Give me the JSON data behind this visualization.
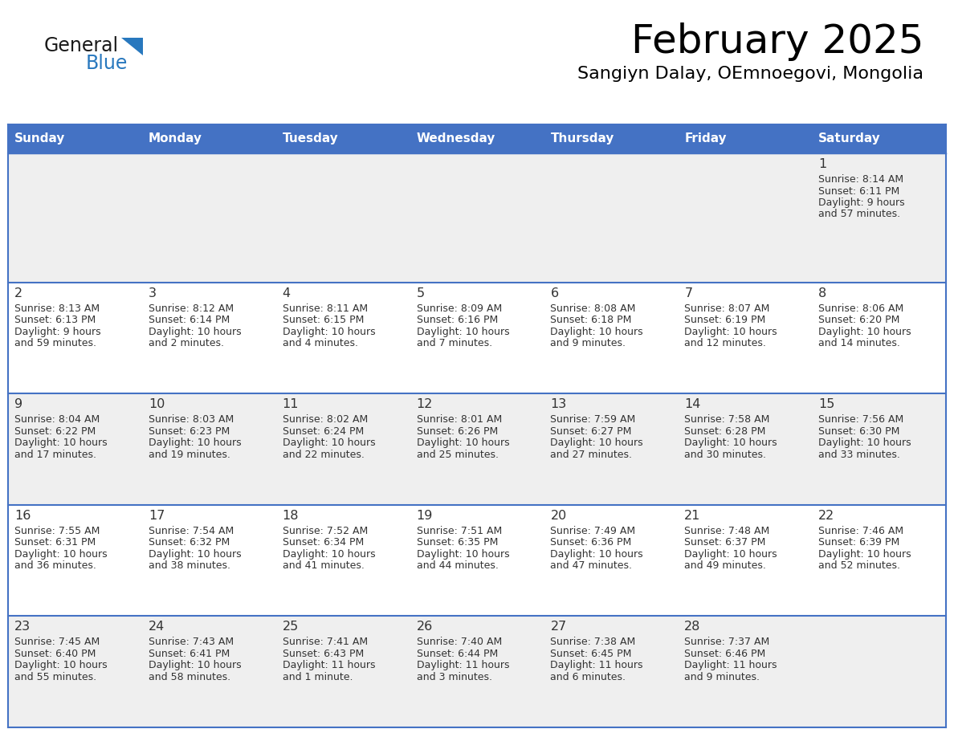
{
  "title": "February 2025",
  "subtitle": "Sangiyn Dalay, OEmnoegovi, Mongolia",
  "header_bg": "#4472C4",
  "header_text": "#FFFFFF",
  "row_bg_odd": "#EFEFEF",
  "row_bg_even": "#FFFFFF",
  "cell_border_color": "#4472C4",
  "day_number_color": "#333333",
  "info_text_color": "#333333",
  "logo_general_color": "#1a1a1a",
  "logo_blue_color": "#2878be",
  "logo_triangle_color": "#2878be",
  "day_headers": [
    "Sunday",
    "Monday",
    "Tuesday",
    "Wednesday",
    "Thursday",
    "Friday",
    "Saturday"
  ],
  "days": [
    {
      "day": 1,
      "col": 6,
      "row": 0,
      "sunrise": "8:14 AM",
      "sunset": "6:11 PM",
      "daylight_h": "9 hours",
      "daylight_m": "and 57 minutes."
    },
    {
      "day": 2,
      "col": 0,
      "row": 1,
      "sunrise": "8:13 AM",
      "sunset": "6:13 PM",
      "daylight_h": "9 hours",
      "daylight_m": "and 59 minutes."
    },
    {
      "day": 3,
      "col": 1,
      "row": 1,
      "sunrise": "8:12 AM",
      "sunset": "6:14 PM",
      "daylight_h": "10 hours",
      "daylight_m": "and 2 minutes."
    },
    {
      "day": 4,
      "col": 2,
      "row": 1,
      "sunrise": "8:11 AM",
      "sunset": "6:15 PM",
      "daylight_h": "10 hours",
      "daylight_m": "and 4 minutes."
    },
    {
      "day": 5,
      "col": 3,
      "row": 1,
      "sunrise": "8:09 AM",
      "sunset": "6:16 PM",
      "daylight_h": "10 hours",
      "daylight_m": "and 7 minutes."
    },
    {
      "day": 6,
      "col": 4,
      "row": 1,
      "sunrise": "8:08 AM",
      "sunset": "6:18 PM",
      "daylight_h": "10 hours",
      "daylight_m": "and 9 minutes."
    },
    {
      "day": 7,
      "col": 5,
      "row": 1,
      "sunrise": "8:07 AM",
      "sunset": "6:19 PM",
      "daylight_h": "10 hours",
      "daylight_m": "and 12 minutes."
    },
    {
      "day": 8,
      "col": 6,
      "row": 1,
      "sunrise": "8:06 AM",
      "sunset": "6:20 PM",
      "daylight_h": "10 hours",
      "daylight_m": "and 14 minutes."
    },
    {
      "day": 9,
      "col": 0,
      "row": 2,
      "sunrise": "8:04 AM",
      "sunset": "6:22 PM",
      "daylight_h": "10 hours",
      "daylight_m": "and 17 minutes."
    },
    {
      "day": 10,
      "col": 1,
      "row": 2,
      "sunrise": "8:03 AM",
      "sunset": "6:23 PM",
      "daylight_h": "10 hours",
      "daylight_m": "and 19 minutes."
    },
    {
      "day": 11,
      "col": 2,
      "row": 2,
      "sunrise": "8:02 AM",
      "sunset": "6:24 PM",
      "daylight_h": "10 hours",
      "daylight_m": "and 22 minutes."
    },
    {
      "day": 12,
      "col": 3,
      "row": 2,
      "sunrise": "8:01 AM",
      "sunset": "6:26 PM",
      "daylight_h": "10 hours",
      "daylight_m": "and 25 minutes."
    },
    {
      "day": 13,
      "col": 4,
      "row": 2,
      "sunrise": "7:59 AM",
      "sunset": "6:27 PM",
      "daylight_h": "10 hours",
      "daylight_m": "and 27 minutes."
    },
    {
      "day": 14,
      "col": 5,
      "row": 2,
      "sunrise": "7:58 AM",
      "sunset": "6:28 PM",
      "daylight_h": "10 hours",
      "daylight_m": "and 30 minutes."
    },
    {
      "day": 15,
      "col": 6,
      "row": 2,
      "sunrise": "7:56 AM",
      "sunset": "6:30 PM",
      "daylight_h": "10 hours",
      "daylight_m": "and 33 minutes."
    },
    {
      "day": 16,
      "col": 0,
      "row": 3,
      "sunrise": "7:55 AM",
      "sunset": "6:31 PM",
      "daylight_h": "10 hours",
      "daylight_m": "and 36 minutes."
    },
    {
      "day": 17,
      "col": 1,
      "row": 3,
      "sunrise": "7:54 AM",
      "sunset": "6:32 PM",
      "daylight_h": "10 hours",
      "daylight_m": "and 38 minutes."
    },
    {
      "day": 18,
      "col": 2,
      "row": 3,
      "sunrise": "7:52 AM",
      "sunset": "6:34 PM",
      "daylight_h": "10 hours",
      "daylight_m": "and 41 minutes."
    },
    {
      "day": 19,
      "col": 3,
      "row": 3,
      "sunrise": "7:51 AM",
      "sunset": "6:35 PM",
      "daylight_h": "10 hours",
      "daylight_m": "and 44 minutes."
    },
    {
      "day": 20,
      "col": 4,
      "row": 3,
      "sunrise": "7:49 AM",
      "sunset": "6:36 PM",
      "daylight_h": "10 hours",
      "daylight_m": "and 47 minutes."
    },
    {
      "day": 21,
      "col": 5,
      "row": 3,
      "sunrise": "7:48 AM",
      "sunset": "6:37 PM",
      "daylight_h": "10 hours",
      "daylight_m": "and 49 minutes."
    },
    {
      "day": 22,
      "col": 6,
      "row": 3,
      "sunrise": "7:46 AM",
      "sunset": "6:39 PM",
      "daylight_h": "10 hours",
      "daylight_m": "and 52 minutes."
    },
    {
      "day": 23,
      "col": 0,
      "row": 4,
      "sunrise": "7:45 AM",
      "sunset": "6:40 PM",
      "daylight_h": "10 hours",
      "daylight_m": "and 55 minutes."
    },
    {
      "day": 24,
      "col": 1,
      "row": 4,
      "sunrise": "7:43 AM",
      "sunset": "6:41 PM",
      "daylight_h": "10 hours",
      "daylight_m": "and 58 minutes."
    },
    {
      "day": 25,
      "col": 2,
      "row": 4,
      "sunrise": "7:41 AM",
      "sunset": "6:43 PM",
      "daylight_h": "11 hours",
      "daylight_m": "and 1 minute."
    },
    {
      "day": 26,
      "col": 3,
      "row": 4,
      "sunrise": "7:40 AM",
      "sunset": "6:44 PM",
      "daylight_h": "11 hours",
      "daylight_m": "and 3 minutes."
    },
    {
      "day": 27,
      "col": 4,
      "row": 4,
      "sunrise": "7:38 AM",
      "sunset": "6:45 PM",
      "daylight_h": "11 hours",
      "daylight_m": "and 6 minutes."
    },
    {
      "day": 28,
      "col": 5,
      "row": 4,
      "sunrise": "7:37 AM",
      "sunset": "6:46 PM",
      "daylight_h": "11 hours",
      "daylight_m": "and 9 minutes."
    }
  ]
}
